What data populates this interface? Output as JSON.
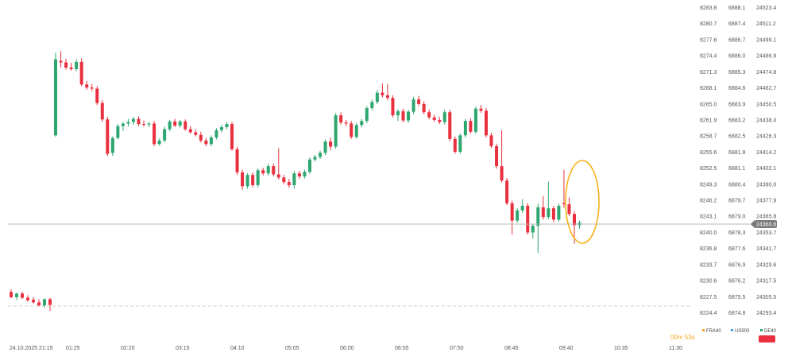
{
  "chart_data": {
    "type": "candlestick",
    "title": "",
    "scales": [
      {
        "name": "left",
        "ticks": [
          "8283.8",
          "8280.7",
          "8277.6",
          "8274.4",
          "8271.3",
          "8268.1",
          "8265.0",
          "8261.9",
          "8258.7",
          "8255.6",
          "8252.5",
          "8249.3",
          "8246.2",
          "8243.1",
          "8240.0",
          "8236.8",
          "8233.7",
          "8230.6",
          "8227.5",
          "8224.4"
        ]
      },
      {
        "name": "middle",
        "ticks": [
          "6888.1",
          "6887.4",
          "6886.7",
          "6886.0",
          "6885.3",
          "6884.6",
          "6883.9",
          "6883.2",
          "6882.5",
          "6881.8",
          "6881.1",
          "6880.4",
          "6879.7",
          "6879.0",
          "6878.3",
          "6877.6",
          "6876.9",
          "6876.2",
          "6875.5",
          "6874.8"
        ]
      },
      {
        "name": "right",
        "ticks": [
          "24523.4",
          "24511.2",
          "24499.1",
          "24486.9",
          "24474.8",
          "24462.7",
          "24450.5",
          "24438.4",
          "24426.3",
          "24414.2",
          "24402.1",
          "24390.0",
          "24377.9",
          "24365.8",
          "24353.7",
          "24341.7",
          "24329.6",
          "24317.5",
          "24305.5",
          "24293.4"
        ]
      }
    ],
    "x_ticks": [
      "24.10.2025  21:15",
      "01:25",
      "02:20",
      "03:15",
      "04:10",
      "05:05",
      "06:00",
      "06:55",
      "07:50",
      "08:45",
      "09:40",
      "10:35",
      "11:30"
    ],
    "current_price": "24360.6",
    "legend": [
      {
        "name": "FRA40",
        "color": "#f5a623"
      },
      {
        "name": "US500",
        "color": "#4aa3df"
      },
      {
        "name": "DE40",
        "color": "#26a269"
      }
    ],
    "timer": "00m 53s",
    "up_color": "#2ea66f",
    "down_color": "#e8303f",
    "ylim": [
      8224.4,
      8283.8
    ],
    "candles_prev_session": [
      {
        "o": 8228.5,
        "h": 8229.0,
        "l": 8227.3,
        "c": 8227.5
      },
      {
        "o": 8227.5,
        "h": 8228.4,
        "l": 8227.0,
        "c": 8228.2
      },
      {
        "o": 8228.2,
        "h": 8228.6,
        "l": 8227.1,
        "c": 8227.4
      },
      {
        "o": 8227.4,
        "h": 8227.9,
        "l": 8226.6,
        "c": 8226.9
      },
      {
        "o": 8227.0,
        "h": 8227.5,
        "l": 8226.3,
        "c": 8226.5
      },
      {
        "o": 8226.5,
        "h": 8227.1,
        "l": 8225.7,
        "c": 8225.9
      },
      {
        "o": 8225.9,
        "h": 8227.3,
        "l": 8225.4,
        "c": 8227.1
      },
      {
        "o": 8227.1,
        "h": 8227.4,
        "l": 8224.8,
        "c": 8226.0
      }
    ],
    "candles": [
      {
        "o": 8259.0,
        "h": 8275.1,
        "l": 8258.7,
        "c": 8273.8
      },
      {
        "o": 8273.5,
        "h": 8275.4,
        "l": 8272.2,
        "c": 8273.2
      },
      {
        "o": 8273.2,
        "h": 8273.9,
        "l": 8271.8,
        "c": 8272.2
      },
      {
        "o": 8272.2,
        "h": 8273.1,
        "l": 8271.6,
        "c": 8271.9
      },
      {
        "o": 8271.9,
        "h": 8273.8,
        "l": 8271.5,
        "c": 8273.3
      },
      {
        "o": 8273.3,
        "h": 8274.0,
        "l": 8268.6,
        "c": 8268.9
      },
      {
        "o": 8268.9,
        "h": 8269.6,
        "l": 8267.9,
        "c": 8268.3
      },
      {
        "o": 8268.3,
        "h": 8269.0,
        "l": 8267.6,
        "c": 8268.1
      },
      {
        "o": 8268.1,
        "h": 8268.6,
        "l": 8264.9,
        "c": 8265.3
      },
      {
        "o": 8265.3,
        "h": 8265.9,
        "l": 8261.6,
        "c": 8262.1
      },
      {
        "o": 8262.1,
        "h": 8262.6,
        "l": 8255.0,
        "c": 8255.4
      },
      {
        "o": 8255.6,
        "h": 8258.8,
        "l": 8255.0,
        "c": 8258.5
      },
      {
        "o": 8258.5,
        "h": 8261.2,
        "l": 8258.2,
        "c": 8260.8
      },
      {
        "o": 8260.8,
        "h": 8261.6,
        "l": 8259.9,
        "c": 8261.3
      },
      {
        "o": 8261.3,
        "h": 8262.2,
        "l": 8260.7,
        "c": 8261.6
      },
      {
        "o": 8261.6,
        "h": 8262.6,
        "l": 8261.1,
        "c": 8262.2
      },
      {
        "o": 8262.2,
        "h": 8262.7,
        "l": 8260.8,
        "c": 8261.2
      },
      {
        "o": 8261.2,
        "h": 8261.9,
        "l": 8260.7,
        "c": 8261.1
      },
      {
        "o": 8261.1,
        "h": 8261.6,
        "l": 8260.6,
        "c": 8261.3
      },
      {
        "o": 8261.3,
        "h": 8261.8,
        "l": 8256.9,
        "c": 8257.3
      },
      {
        "o": 8257.3,
        "h": 8258.4,
        "l": 8257.0,
        "c": 8258.0
      },
      {
        "o": 8258.0,
        "h": 8260.7,
        "l": 8257.6,
        "c": 8260.2
      },
      {
        "o": 8260.2,
        "h": 8262.0,
        "l": 8259.8,
        "c": 8261.7
      },
      {
        "o": 8261.7,
        "h": 8262.2,
        "l": 8260.6,
        "c": 8260.9
      },
      {
        "o": 8260.9,
        "h": 8262.0,
        "l": 8260.5,
        "c": 8261.7
      },
      {
        "o": 8261.7,
        "h": 8262.1,
        "l": 8259.9,
        "c": 8260.2
      },
      {
        "o": 8260.2,
        "h": 8260.8,
        "l": 8259.3,
        "c": 8259.6
      },
      {
        "o": 8259.6,
        "h": 8260.2,
        "l": 8258.8,
        "c": 8259.1
      },
      {
        "o": 8259.1,
        "h": 8259.7,
        "l": 8257.6,
        "c": 8258.0
      },
      {
        "o": 8258.0,
        "h": 8258.5,
        "l": 8256.9,
        "c": 8257.3
      },
      {
        "o": 8257.3,
        "h": 8259.0,
        "l": 8256.9,
        "c": 8258.6
      },
      {
        "o": 8258.6,
        "h": 8260.4,
        "l": 8258.2,
        "c": 8260.0
      },
      {
        "o": 8260.0,
        "h": 8261.0,
        "l": 8259.6,
        "c": 8260.6
      },
      {
        "o": 8260.6,
        "h": 8261.6,
        "l": 8260.2,
        "c": 8261.2
      },
      {
        "o": 8261.2,
        "h": 8261.7,
        "l": 8256.0,
        "c": 8256.3
      },
      {
        "o": 8256.3,
        "h": 8256.8,
        "l": 8251.3,
        "c": 8251.8
      },
      {
        "o": 8251.8,
        "h": 8252.3,
        "l": 8248.4,
        "c": 8249.1
      },
      {
        "o": 8249.1,
        "h": 8251.7,
        "l": 8248.6,
        "c": 8251.3
      },
      {
        "o": 8251.3,
        "h": 8251.8,
        "l": 8248.9,
        "c": 8249.3
      },
      {
        "o": 8249.3,
        "h": 8252.6,
        "l": 8248.9,
        "c": 8252.2
      },
      {
        "o": 8252.2,
        "h": 8252.7,
        "l": 8251.2,
        "c": 8251.6
      },
      {
        "o": 8251.6,
        "h": 8253.5,
        "l": 8251.2,
        "c": 8253.0
      },
      {
        "o": 8253.0,
        "h": 8253.5,
        "l": 8251.0,
        "c": 8251.4
      },
      {
        "o": 8251.4,
        "h": 8256.5,
        "l": 8250.4,
        "c": 8250.8
      },
      {
        "o": 8250.8,
        "h": 8251.3,
        "l": 8249.5,
        "c": 8249.9
      },
      {
        "o": 8249.9,
        "h": 8250.5,
        "l": 8248.8,
        "c": 8249.3
      },
      {
        "o": 8249.3,
        "h": 8252.1,
        "l": 8248.6,
        "c": 8251.6
      },
      {
        "o": 8251.6,
        "h": 8252.1,
        "l": 8250.5,
        "c": 8251.0
      },
      {
        "o": 8251.0,
        "h": 8252.3,
        "l": 8250.6,
        "c": 8251.9
      },
      {
        "o": 8251.9,
        "h": 8254.7,
        "l": 8251.5,
        "c": 8254.3
      },
      {
        "o": 8254.3,
        "h": 8255.2,
        "l": 8253.9,
        "c": 8254.8
      },
      {
        "o": 8254.8,
        "h": 8256.0,
        "l": 8254.4,
        "c": 8255.6
      },
      {
        "o": 8255.6,
        "h": 8258.2,
        "l": 8255.2,
        "c": 8257.8
      },
      {
        "o": 8257.8,
        "h": 8258.6,
        "l": 8256.1,
        "c": 8256.8
      },
      {
        "o": 8256.8,
        "h": 8263.3,
        "l": 8256.4,
        "c": 8262.9
      },
      {
        "o": 8262.9,
        "h": 8263.5,
        "l": 8261.1,
        "c": 8261.5
      },
      {
        "o": 8261.5,
        "h": 8262.0,
        "l": 8260.8,
        "c": 8261.3
      },
      {
        "o": 8261.3,
        "h": 8261.8,
        "l": 8258.3,
        "c": 8258.7
      },
      {
        "o": 8258.7,
        "h": 8261.4,
        "l": 8258.3,
        "c": 8261.0
      },
      {
        "o": 8261.0,
        "h": 8262.2,
        "l": 8260.6,
        "c": 8261.8
      },
      {
        "o": 8261.8,
        "h": 8264.7,
        "l": 8261.4,
        "c": 8264.3
      },
      {
        "o": 8264.3,
        "h": 8266.0,
        "l": 8263.9,
        "c": 8265.5
      },
      {
        "o": 8265.5,
        "h": 8267.8,
        "l": 8265.1,
        "c": 8267.3
      },
      {
        "o": 8267.3,
        "h": 8269.1,
        "l": 8266.4,
        "c": 8266.8
      },
      {
        "o": 8266.8,
        "h": 8269.0,
        "l": 8265.8,
        "c": 8266.3
      },
      {
        "o": 8266.3,
        "h": 8266.8,
        "l": 8262.5,
        "c": 8262.9
      },
      {
        "o": 8262.9,
        "h": 8264.1,
        "l": 8261.8,
        "c": 8263.7
      },
      {
        "o": 8263.7,
        "h": 8264.2,
        "l": 8261.5,
        "c": 8261.9
      },
      {
        "o": 8261.9,
        "h": 8264.0,
        "l": 8261.4,
        "c": 8263.6
      },
      {
        "o": 8263.6,
        "h": 8266.5,
        "l": 8263.1,
        "c": 8266.0
      },
      {
        "o": 8266.0,
        "h": 8266.7,
        "l": 8264.7,
        "c": 8265.1
      },
      {
        "o": 8265.1,
        "h": 8265.6,
        "l": 8263.1,
        "c": 8263.5
      },
      {
        "o": 8263.5,
        "h": 8264.0,
        "l": 8262.1,
        "c": 8262.5
      },
      {
        "o": 8262.5,
        "h": 8263.0,
        "l": 8261.6,
        "c": 8262.0
      },
      {
        "o": 8262.0,
        "h": 8262.6,
        "l": 8261.2,
        "c": 8261.6
      },
      {
        "o": 8261.6,
        "h": 8264.0,
        "l": 8261.1,
        "c": 8263.5
      },
      {
        "o": 8263.5,
        "h": 8264.0,
        "l": 8257.9,
        "c": 8258.3
      },
      {
        "o": 8258.3,
        "h": 8258.8,
        "l": 8255.4,
        "c": 8255.8
      },
      {
        "o": 8255.8,
        "h": 8259.4,
        "l": 8255.4,
        "c": 8259.0
      },
      {
        "o": 8259.0,
        "h": 8262.2,
        "l": 8258.6,
        "c": 8261.8
      },
      {
        "o": 8261.8,
        "h": 8262.3,
        "l": 8259.3,
        "c": 8259.7
      },
      {
        "o": 8259.7,
        "h": 8264.6,
        "l": 8259.3,
        "c": 8264.2
      },
      {
        "o": 8264.2,
        "h": 8264.9,
        "l": 8263.4,
        "c": 8263.8
      },
      {
        "o": 8263.8,
        "h": 8264.3,
        "l": 8258.6,
        "c": 8259.0
      },
      {
        "o": 8259.0,
        "h": 8259.5,
        "l": 8256.5,
        "c": 8256.9
      },
      {
        "o": 8256.9,
        "h": 8257.4,
        "l": 8252.5,
        "c": 8253.0
      },
      {
        "o": 8253.0,
        "h": 8260.0,
        "l": 8249.8,
        "c": 8250.2
      },
      {
        "o": 8250.2,
        "h": 8250.7,
        "l": 8245.4,
        "c": 8245.8
      },
      {
        "o": 8245.8,
        "h": 8246.3,
        "l": 8239.7,
        "c": 8242.4
      },
      {
        "o": 8242.4,
        "h": 8244.8,
        "l": 8242.0,
        "c": 8244.4
      },
      {
        "o": 8244.4,
        "h": 8246.6,
        "l": 8243.9,
        "c": 8245.3
      },
      {
        "o": 8245.3,
        "h": 8245.8,
        "l": 8239.7,
        "c": 8240.1
      },
      {
        "o": 8240.1,
        "h": 8241.8,
        "l": 8238.9,
        "c": 8241.4
      },
      {
        "o": 8241.4,
        "h": 8245.7,
        "l": 8236.1,
        "c": 8245.0
      },
      {
        "o": 8245.0,
        "h": 8247.2,
        "l": 8242.6,
        "c": 8243.1
      },
      {
        "o": 8243.1,
        "h": 8250.0,
        "l": 8242.7,
        "c": 8244.8
      },
      {
        "o": 8244.8,
        "h": 8245.3,
        "l": 8242.1,
        "c": 8242.6
      },
      {
        "o": 8242.6,
        "h": 8245.7,
        "l": 8242.2,
        "c": 8245.3
      },
      {
        "o": 8245.8,
        "h": 8252.3,
        "l": 8244.9,
        "c": 8245.6
      },
      {
        "o": 8245.6,
        "h": 8246.9,
        "l": 8243.3,
        "c": 8243.7
      },
      {
        "o": 8243.7,
        "h": 8244.2,
        "l": 8237.9,
        "c": 8241.5
      },
      {
        "o": 8241.5,
        "h": 8242.4,
        "l": 8240.8,
        "c": 8242.0
      }
    ]
  }
}
